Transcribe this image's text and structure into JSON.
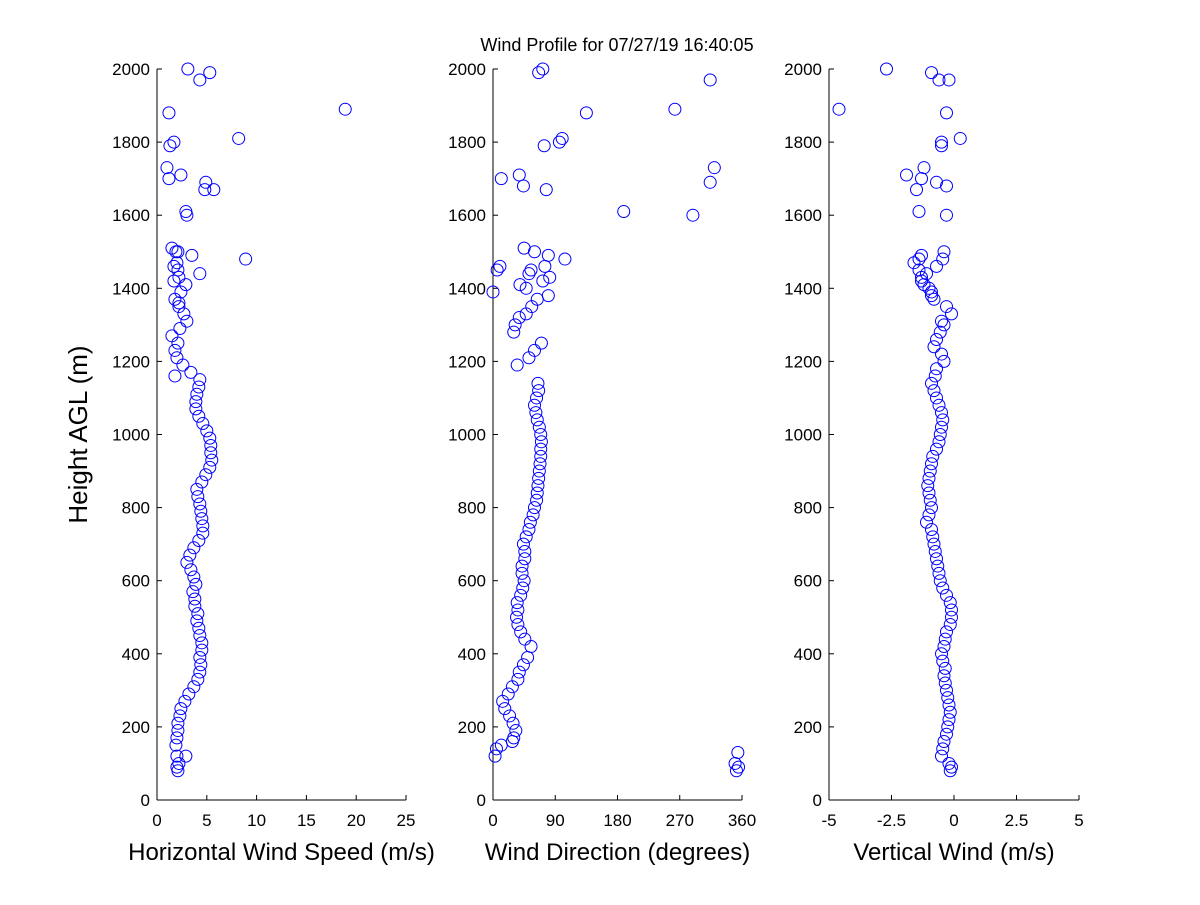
{
  "title": "Wind Profile for  07/27/19 16:40:05",
  "marker_color": "#0000ff",
  "chart_data": [
    {
      "type": "scatter",
      "xlabel": "Horizontal Wind Speed (m/s)",
      "ylabel": "Height AGL (m)",
      "xlim": [
        0,
        25
      ],
      "ylim": [
        0,
        2000
      ],
      "xticks": [
        0,
        5,
        10,
        15,
        20,
        25
      ],
      "xtick_labels": [
        "0",
        "5",
        "10",
        "15",
        "20",
        "25"
      ],
      "yticks": [
        0,
        200,
        400,
        600,
        800,
        1000,
        1200,
        1400,
        1600,
        1800,
        2000
      ],
      "ytick_labels": [
        "0",
        "200",
        "400",
        "600",
        "800",
        "1000",
        "1200",
        "1400",
        "1600",
        "1800",
        "2000"
      ],
      "grid": false,
      "x": [
        2.1,
        2.0,
        2.2,
        2.0,
        2.9,
        1.9,
        2.0,
        2.1,
        2.1,
        2.3,
        2.4,
        2.8,
        3.2,
        3.7,
        4.1,
        4.3,
        4.4,
        4.3,
        4.5,
        4.5,
        4.3,
        4.2,
        4.0,
        4.1,
        3.8,
        3.8,
        3.6,
        3.9,
        3.7,
        3.4,
        3.0,
        3.3,
        3.7,
        4.2,
        4.6,
        4.6,
        4.5,
        4.4,
        4.3,
        4.1,
        4.0,
        4.5,
        4.9,
        5.3,
        5.5,
        5.4,
        5.4,
        5.3,
        5.0,
        4.6,
        4.2,
        3.9,
        3.9,
        4.0,
        4.2,
        4.3,
        3.4,
        2.6,
        2.0,
        1.8,
        2.1,
        1.5,
        2.3,
        3.0,
        2.7,
        2.2,
        1.8,
        2.4,
        2.9,
        2.2,
        2.1,
        2.0,
        3.5,
        1.5,
        1.8,
        2.2,
        4.3,
        1.7,
        1.7,
        1.9,
        2.1,
        8.9,
        3.0,
        2.9,
        4.8,
        5.7,
        4.9,
        1.2,
        2.4,
        1.0,
        1.3,
        1.7,
        8.2,
        1.2,
        18.9,
        4.3,
        3.1,
        5.3
      ],
      "y": [
        80,
        90,
        100,
        120,
        120,
        150,
        170,
        190,
        210,
        230,
        250,
        270,
        290,
        310,
        330,
        350,
        370,
        390,
        410,
        430,
        450,
        470,
        490,
        510,
        530,
        550,
        570,
        590,
        610,
        630,
        650,
        670,
        690,
        710,
        730,
        750,
        770,
        790,
        810,
        830,
        850,
        870,
        890,
        910,
        930,
        950,
        970,
        990,
        1010,
        1030,
        1050,
        1070,
        1090,
        1110,
        1130,
        1150,
        1170,
        1190,
        1210,
        1230,
        1250,
        1270,
        1290,
        1310,
        1330,
        1350,
        1370,
        1390,
        1410,
        1430,
        1450,
        1470,
        1490,
        1510,
        1160,
        1360,
        1440,
        1420,
        1460,
        1500,
        1500,
        1480,
        1600,
        1610,
        1670,
        1670,
        1690,
        1700,
        1710,
        1730,
        1790,
        1800,
        1810,
        1880,
        1890,
        1970,
        2000,
        1990
      ]
    },
    {
      "type": "scatter",
      "xlabel": "Wind Direction (degrees)",
      "ylabel": "",
      "xlim": [
        0,
        360
      ],
      "ylim": [
        0,
        2000
      ],
      "xticks": [
        0,
        90,
        180,
        270,
        360
      ],
      "xtick_labels": [
        "0",
        "90",
        "180",
        "270",
        "360"
      ],
      "yticks": [
        0,
        200,
        400,
        600,
        800,
        1000,
        1200,
        1400,
        1600,
        1800,
        2000
      ],
      "ytick_labels": [
        "0",
        "200",
        "400",
        "600",
        "800",
        "1000",
        "1200",
        "1400",
        "1600",
        "1800",
        "2000"
      ],
      "grid": false,
      "x": [
        352,
        355,
        350,
        3,
        354,
        5,
        12,
        28,
        30,
        33,
        29,
        24,
        17,
        14,
        22,
        28,
        36,
        38,
        44,
        50,
        55,
        46,
        40,
        36,
        34,
        36,
        35,
        40,
        43,
        45,
        42,
        42,
        46,
        46,
        44,
        48,
        52,
        54,
        58,
        60,
        63,
        64,
        65,
        66,
        67,
        68,
        69,
        69,
        70,
        69,
        67,
        64,
        62,
        60,
        63,
        66,
        65,
        35,
        52,
        60,
        70,
        30,
        32,
        38,
        48,
        56,
        64,
        0,
        80,
        48,
        6,
        75,
        80,
        60,
        45,
        39,
        72,
        82,
        10,
        52,
        55,
        104,
        289,
        189,
        77,
        44,
        314,
        12,
        38,
        320,
        74,
        96,
        100,
        135,
        263,
        314,
        66,
        72
      ],
      "y": [
        80,
        90,
        100,
        120,
        130,
        140,
        150,
        160,
        170,
        190,
        210,
        230,
        250,
        270,
        290,
        310,
        330,
        350,
        370,
        390,
        420,
        440,
        460,
        480,
        500,
        520,
        540,
        560,
        580,
        600,
        620,
        640,
        660,
        680,
        700,
        720,
        740,
        760,
        780,
        800,
        820,
        840,
        860,
        880,
        900,
        920,
        940,
        960,
        980,
        1000,
        1020,
        1040,
        1060,
        1080,
        1100,
        1120,
        1140,
        1190,
        1210,
        1230,
        1250,
        1280,
        1300,
        1320,
        1330,
        1350,
        1370,
        1390,
        1380,
        1400,
        1450,
        1460,
        1490,
        1500,
        1510,
        1410,
        1420,
        1430,
        1460,
        1440,
        1450,
        1480,
        1600,
        1610,
        1670,
        1680,
        1690,
        1700,
        1710,
        1730,
        1790,
        1800,
        1810,
        1880,
        1890,
        1970,
        1990,
        2000
      ]
    },
    {
      "type": "scatter",
      "xlabel": "Vertical Wind (m/s)",
      "ylabel": "",
      "xlim": [
        -5,
        5
      ],
      "ylim": [
        0,
        2000
      ],
      "xticks": [
        -5,
        -2.5,
        0,
        2.5,
        5
      ],
      "xtick_labels": [
        "-5",
        "-2.5",
        "0",
        "2.5",
        "5"
      ],
      "yticks": [
        0,
        200,
        400,
        600,
        800,
        1000,
        1200,
        1400,
        1600,
        1800,
        2000
      ],
      "ytick_labels": [
        "0",
        "200",
        "400",
        "600",
        "800",
        "1000",
        "1200",
        "1400",
        "1600",
        "1800",
        "2000"
      ],
      "grid": false,
      "x": [
        -0.15,
        -0.1,
        -0.2,
        -0.5,
        -0.45,
        -0.4,
        -0.3,
        -0.25,
        -0.2,
        -0.15,
        -0.2,
        -0.25,
        -0.3,
        -0.35,
        -0.4,
        -0.35,
        -0.45,
        -0.5,
        -0.4,
        -0.35,
        -0.3,
        -0.15,
        -0.1,
        -0.1,
        -0.15,
        -0.3,
        -0.45,
        -0.55,
        -0.6,
        -0.65,
        -0.7,
        -0.75,
        -0.8,
        -0.85,
        -0.9,
        -1.1,
        -1.0,
        -0.9,
        -0.95,
        -1.0,
        -1.05,
        -1.0,
        -0.95,
        -0.9,
        -0.85,
        -0.7,
        -0.6,
        -0.55,
        -0.5,
        -0.45,
        -0.5,
        -0.6,
        -0.7,
        -0.8,
        -0.9,
        -0.75,
        -0.7,
        -0.4,
        -0.5,
        -0.8,
        -0.7,
        -0.55,
        -0.4,
        -0.5,
        -0.1,
        -0.3,
        -0.8,
        -0.9,
        -1.2,
        -1.3,
        -1.4,
        -1.6,
        -1.3,
        -0.4,
        -0.45,
        -0.7,
        -1.1,
        -1.3,
        -1.0,
        -1.4,
        -0.9,
        -0.3,
        -0.3,
        -1.4,
        -1.5,
        -0.7,
        -1.3,
        -1.9,
        -1.2,
        -0.5,
        -0.5,
        0.25,
        -0.3,
        -4.6,
        -0.6,
        -2.7,
        -0.2,
        -0.9
      ],
      "y": [
        80,
        90,
        100,
        120,
        140,
        160,
        180,
        200,
        220,
        240,
        260,
        280,
        300,
        320,
        340,
        360,
        380,
        400,
        420,
        440,
        460,
        480,
        500,
        520,
        540,
        560,
        580,
        600,
        620,
        640,
        660,
        680,
        700,
        720,
        740,
        760,
        780,
        800,
        820,
        840,
        860,
        880,
        900,
        920,
        940,
        960,
        980,
        1000,
        1020,
        1040,
        1060,
        1080,
        1100,
        1120,
        1140,
        1160,
        1180,
        1200,
        1220,
        1240,
        1260,
        1280,
        1300,
        1310,
        1330,
        1350,
        1370,
        1390,
        1410,
        1430,
        1450,
        1470,
        1490,
        1500,
        1480,
        1460,
        1440,
        1420,
        1400,
        1480,
        1380,
        1600,
        1680,
        1610,
        1670,
        1690,
        1700,
        1710,
        1730,
        1790,
        1800,
        1810,
        1880,
        1890,
        1970,
        2000,
        1970,
        1990
      ]
    }
  ]
}
